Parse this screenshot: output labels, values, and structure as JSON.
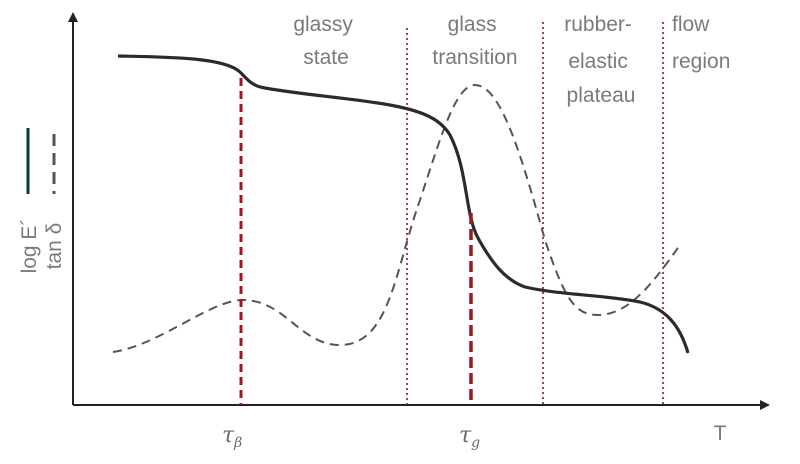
{
  "regions": [
    {
      "line1": "glassy",
      "line2": "state",
      "line3": ""
    },
    {
      "line1": "glass",
      "line2": "transition",
      "line3": ""
    },
    {
      "line1": "rubber-",
      "line2": "elastic",
      "line3": "plateau"
    },
    {
      "line1": "flow",
      "line2": "region",
      "line3": ""
    }
  ],
  "axes": {
    "x_label": "T",
    "y_label_modulus": "log E´",
    "y_label_damping": "tan δ"
  },
  "ticks": {
    "beta": {
      "symbol": "τ",
      "sub": "β"
    },
    "glass": {
      "symbol": "τ",
      "sub": "g"
    }
  },
  "colors": {
    "modulus_curve": "#2b2b2b",
    "damping_curve": "#555555",
    "marker_lines": "#a01818",
    "region_dividers": "#8b1a1a",
    "legend_solid": "#0d3b3b",
    "axis": "#222222"
  }
}
